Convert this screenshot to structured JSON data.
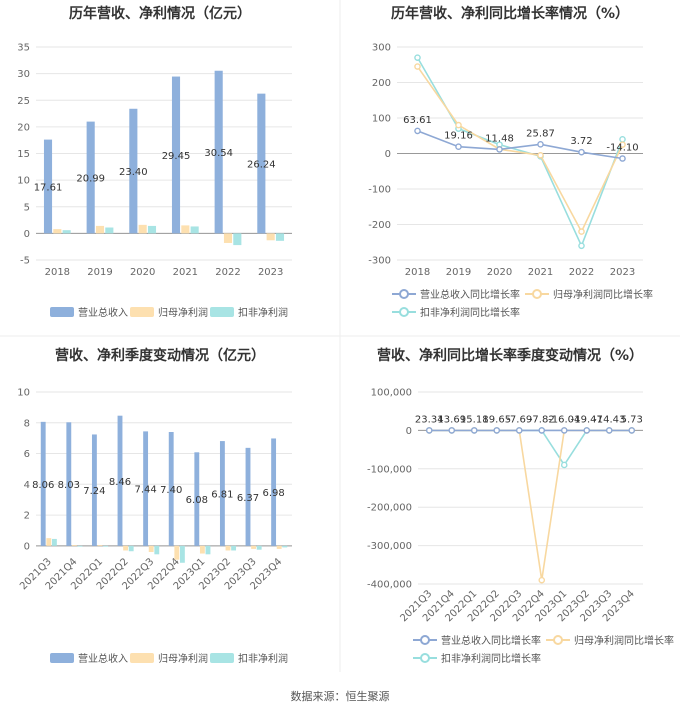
{
  "source": "数据来源：恒生聚源",
  "colors": {
    "revenue": "#8eb0dc",
    "net_profit": "#fde0b0",
    "deducted": "#a8e4e4",
    "revenue_line": "#8ea8d4",
    "net_line": "#f8d8a0",
    "deducted_line": "#98dede"
  },
  "chart_data": [
    {
      "id": "annual-bar",
      "type": "bar",
      "title": "历年营收、净利情况（亿元）",
      "categories": [
        "2018",
        "2019",
        "2020",
        "2021",
        "2022",
        "2023"
      ],
      "ylim": [
        -5,
        35
      ],
      "yticks": [
        -5,
        0,
        5,
        10,
        15,
        20,
        25,
        30,
        35
      ],
      "series": [
        {
          "name": "营业总收入",
          "values": [
            17.61,
            20.99,
            23.4,
            29.45,
            30.54,
            26.24
          ]
        },
        {
          "name": "归母净利润",
          "values": [
            0.8,
            1.4,
            1.6,
            1.5,
            -1.8,
            -1.3
          ]
        },
        {
          "name": "扣非净利润",
          "values": [
            0.6,
            1.1,
            1.4,
            1.3,
            -2.2,
            -1.4
          ]
        }
      ],
      "data_labels": [
        "17.61",
        "20.99",
        "23.40",
        "29.45",
        "30.54",
        "26.24"
      ]
    },
    {
      "id": "annual-line",
      "type": "line",
      "title": "历年营收、净利同比增长率情况（%）",
      "categories": [
        "2018",
        "2019",
        "2020",
        "2021",
        "2022",
        "2023"
      ],
      "ylim": [
        -300,
        300
      ],
      "yticks": [
        -300,
        -200,
        -100,
        0,
        100,
        200,
        300
      ],
      "series": [
        {
          "name": "营业总收入同比增长率",
          "values": [
            63.61,
            19.16,
            11.48,
            25.87,
            3.72,
            -14.1
          ]
        },
        {
          "name": "归母净利润同比增长率",
          "values": [
            245,
            80,
            12,
            -5,
            -220,
            25
          ]
        },
        {
          "name": "扣非净利润同比增长率",
          "values": [
            270,
            70,
            25,
            -8,
            -260,
            40
          ]
        }
      ],
      "data_labels": [
        "63.61",
        "19.16",
        "11.48",
        "25.87",
        "3.72",
        "-14.10"
      ]
    },
    {
      "id": "quarter-bar",
      "type": "bar",
      "title": "营收、净利季度变动情况（亿元）",
      "categories": [
        "2021Q3",
        "2021Q4",
        "2022Q1",
        "2022Q2",
        "2022Q3",
        "2022Q4",
        "2023Q1",
        "2023Q2",
        "2023Q3",
        "2023Q4"
      ],
      "ylim": [
        -0.4,
        10
      ],
      "yticks": [
        0,
        2,
        4,
        6,
        8,
        10
      ],
      "series": [
        {
          "name": "营业总收入",
          "values": [
            8.06,
            8.03,
            7.24,
            8.46,
            7.44,
            7.4,
            6.08,
            6.81,
            6.37,
            6.98
          ]
        },
        {
          "name": "归母净利润",
          "values": [
            0.5,
            0.05,
            0.05,
            -0.3,
            -0.4,
            -0.9,
            -0.5,
            -0.3,
            -0.2,
            -0.2
          ]
        },
        {
          "name": "扣非净利润",
          "values": [
            0.45,
            -0.02,
            -0.02,
            -0.35,
            -0.55,
            -1.1,
            -0.55,
            -0.3,
            -0.25,
            -0.1
          ]
        }
      ],
      "data_labels": [
        "8.06",
        "8.03",
        "7.24",
        "8.46",
        "7.44",
        "7.40",
        "6.08",
        "6.81",
        "6.37",
        "6.98"
      ]
    },
    {
      "id": "quarter-line",
      "type": "line",
      "title": "营收、净利同比增长率季度变动情况（%）",
      "categories": [
        "2021Q3",
        "2021Q4",
        "2022Q1",
        "2022Q2",
        "2022Q3",
        "2022Q4",
        "2023Q1",
        "2023Q2",
        "2023Q3",
        "2023Q4"
      ],
      "ylim": [
        -400000,
        100000
      ],
      "yticks": [
        -400000,
        -300000,
        -200000,
        -100000,
        0,
        100000
      ],
      "ytick_labels": [
        "-400,000",
        "-300,000",
        "-200,000",
        "-100,000",
        "0",
        "100,000"
      ],
      "series": [
        {
          "name": "营业总收入同比增长率",
          "values": [
            23.34,
            13.69,
            15.18,
            19.65,
            -7.69,
            -7.82,
            -16.04,
            -19.47,
            -14.43,
            5.73
          ]
        },
        {
          "name": "归母净利润同比增长率",
          "values": [
            0,
            0,
            0,
            0,
            0,
            -390000,
            0,
            0,
            0,
            0
          ]
        },
        {
          "name": "扣非净利润同比增长率",
          "values": [
            0,
            0,
            0,
            0,
            0,
            0,
            -90000,
            0,
            0,
            0
          ]
        }
      ],
      "data_labels": [
        "23.34",
        "13.69",
        "15.18",
        "19.65",
        "-7.69",
        "-7.82",
        "-16.04",
        "-19.47",
        "-14.43",
        "5.73"
      ]
    }
  ]
}
